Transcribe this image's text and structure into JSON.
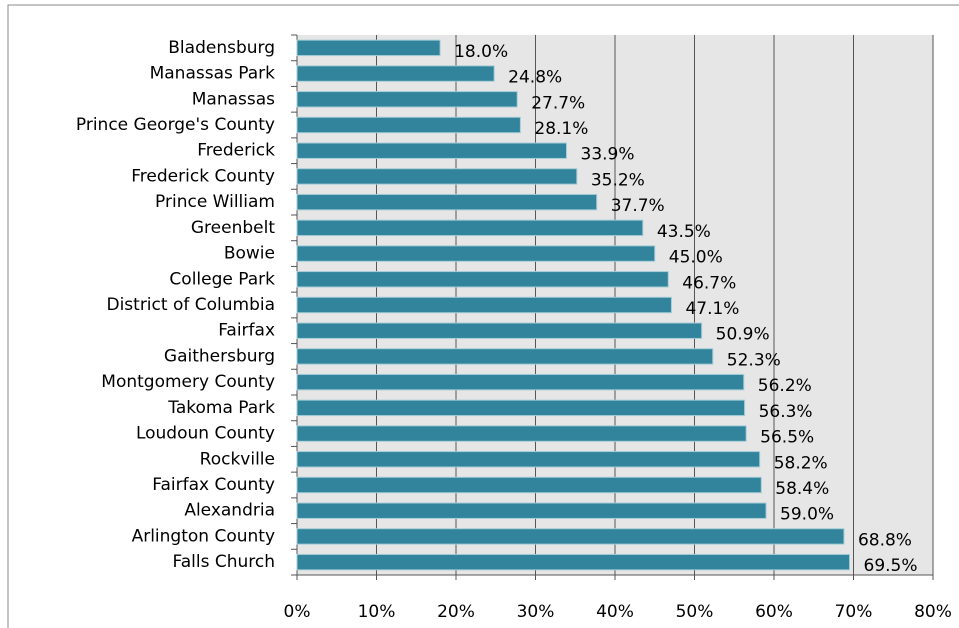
{
  "chart_data": {
    "type": "barh",
    "categories": [
      "Bladensburg",
      "Manassas Park",
      "Manassas",
      "Prince George's County",
      "Frederick",
      "Frederick County",
      "Prince William",
      "Greenbelt",
      "Bowie",
      "College Park",
      "District of Columbia",
      "Fairfax",
      "Gaithersburg",
      "Montgomery County",
      "Takoma Park",
      "Loudoun County",
      "Rockville",
      "Fairfax County",
      "Alexandria",
      "Arlington County",
      "Falls Church"
    ],
    "values": [
      18.0,
      24.8,
      27.7,
      28.1,
      33.9,
      35.2,
      37.7,
      43.5,
      45.0,
      46.7,
      47.1,
      50.9,
      52.3,
      56.2,
      56.3,
      56.5,
      58.2,
      58.4,
      59.0,
      68.8,
      69.5
    ],
    "value_labels": [
      "18.0%",
      "24.8%",
      "27.7%",
      "28.1%",
      "33.9%",
      "35.2%",
      "37.7%",
      "43.5%",
      "45.0%",
      "46.7%",
      "47.1%",
      "50.9%",
      "52.3%",
      "56.2%",
      "56.3%",
      "56.5%",
      "58.2%",
      "58.4%",
      "59.0%",
      "68.8%",
      "69.5%"
    ],
    "color": "#31849b",
    "xlim": [
      0,
      80
    ],
    "xticks": [
      {
        "value": 0,
        "label": "0%"
      },
      {
        "value": 10,
        "label": "10%"
      },
      {
        "value": 20,
        "label": "20%"
      },
      {
        "value": 30,
        "label": "30%"
      },
      {
        "value": 40,
        "label": "40%"
      },
      {
        "value": 50,
        "label": "50%"
      },
      {
        "value": 60,
        "label": "60%"
      },
      {
        "value": 70,
        "label": "70%"
      },
      {
        "value": 80,
        "label": "80%"
      }
    ],
    "grid": true
  }
}
